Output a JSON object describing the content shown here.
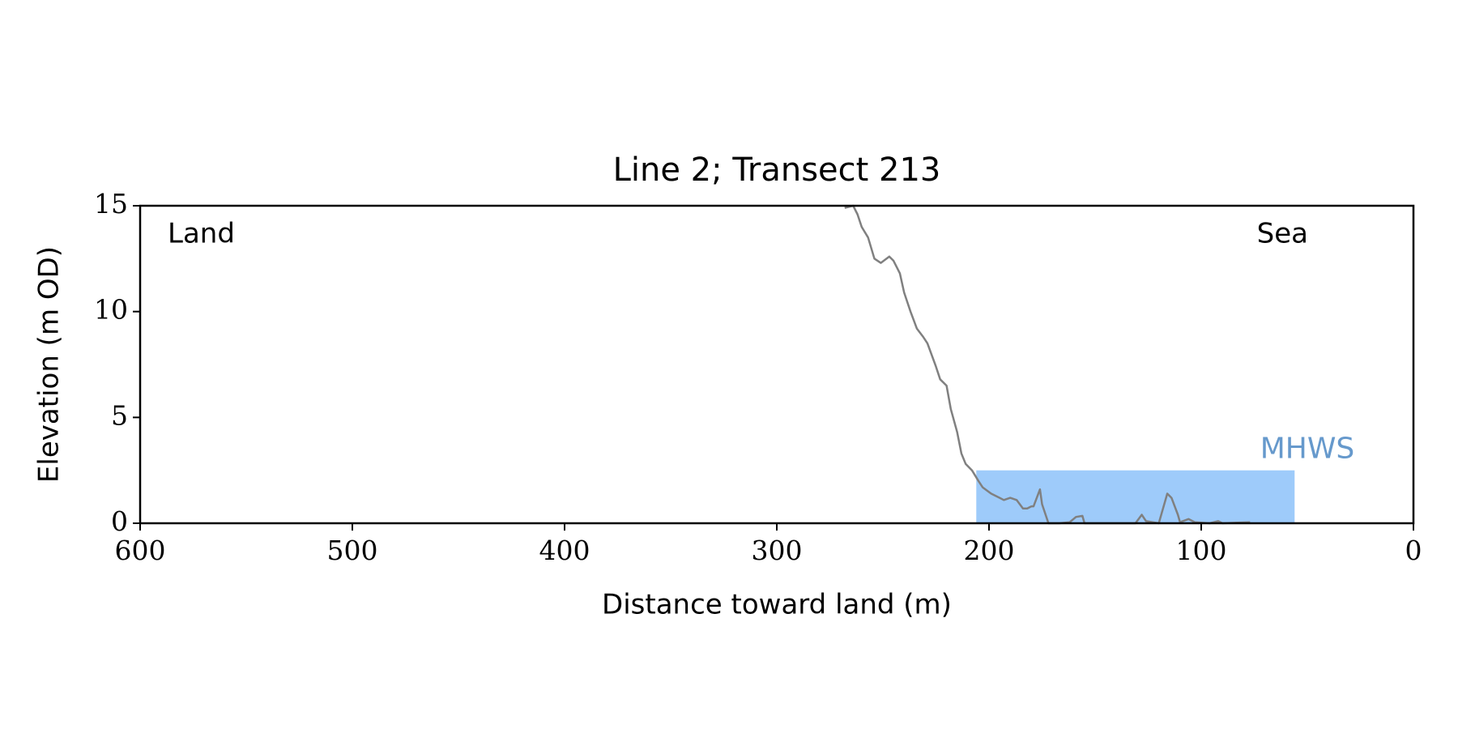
{
  "chart_data": {
    "type": "line",
    "title": "Line 2; Transect 213",
    "xlabel": "Distance toward land (m)",
    "ylabel": "Elevation (m OD)",
    "xlim": [
      600,
      0
    ],
    "xticks": [
      600,
      500,
      400,
      300,
      200,
      100,
      0
    ],
    "ylim": [
      0,
      15
    ],
    "yticks": [
      0,
      5,
      10,
      15
    ],
    "annotations": [
      "Land",
      "Sea"
    ],
    "band": {
      "label": "MHWS",
      "x": [
        206,
        56
      ],
      "y": [
        0,
        2.5
      ],
      "color": "#9ecbfa",
      "label_color": "#6699cc"
    },
    "series": [
      {
        "color": "#808080",
        "x": [
          268,
          264,
          262,
          260,
          257,
          254,
          251,
          247,
          245,
          242,
          240,
          237,
          234,
          231,
          229,
          225,
          223,
          220,
          218,
          215,
          213,
          211,
          208,
          205,
          203,
          199,
          195,
          193,
          190,
          187,
          184,
          182,
          180,
          179,
          176,
          175,
          172,
          167,
          162,
          159,
          156,
          155,
          131,
          128,
          126,
          120,
          116,
          114,
          111,
          110,
          106,
          103,
          96,
          92,
          90,
          77
        ],
        "values": [
          14.9,
          15.0,
          14.6,
          14.0,
          13.5,
          12.5,
          12.3,
          12.6,
          12.4,
          11.8,
          10.9,
          10.0,
          9.2,
          8.8,
          8.5,
          7.4,
          6.8,
          6.5,
          5.4,
          4.3,
          3.3,
          2.8,
          2.5,
          2.0,
          1.7,
          1.4,
          1.2,
          1.1,
          1.2,
          1.1,
          0.7,
          0.7,
          0.8,
          0.8,
          1.6,
          0.9,
          0.0,
          0.0,
          0.05,
          0.3,
          0.35,
          0.0,
          0.0,
          0.4,
          0.1,
          0.0,
          1.4,
          1.2,
          0.4,
          0.05,
          0.2,
          0.05,
          0.0,
          0.1,
          0.0,
          0.05
        ]
      }
    ]
  }
}
